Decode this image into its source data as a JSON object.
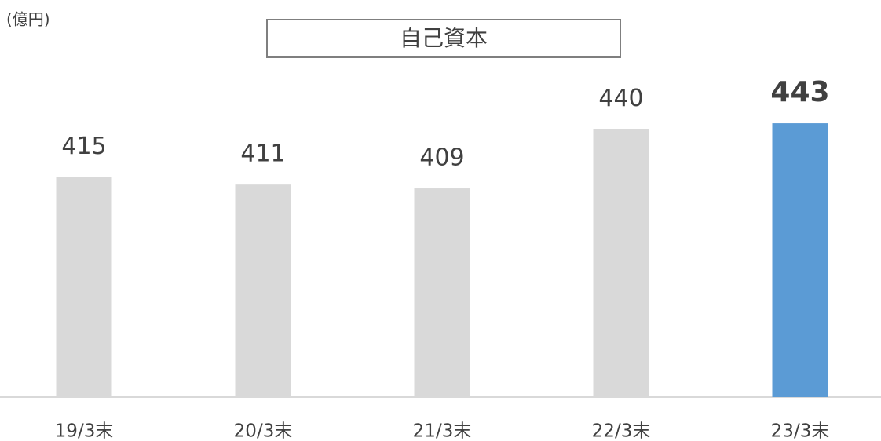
{
  "chart_data": {
    "type": "bar",
    "title": "自己資本",
    "unit_label": "(億円)",
    "categories": [
      "19/3末",
      "20/3末",
      "21/3末",
      "22/3末",
      "23/3末"
    ],
    "values": [
      415,
      411,
      409,
      440,
      443
    ],
    "color": "#d9d9d9",
    "highlight": 4,
    "highlight_color": "#5b9bd5",
    "ylim": [
      300,
      450
    ]
  }
}
